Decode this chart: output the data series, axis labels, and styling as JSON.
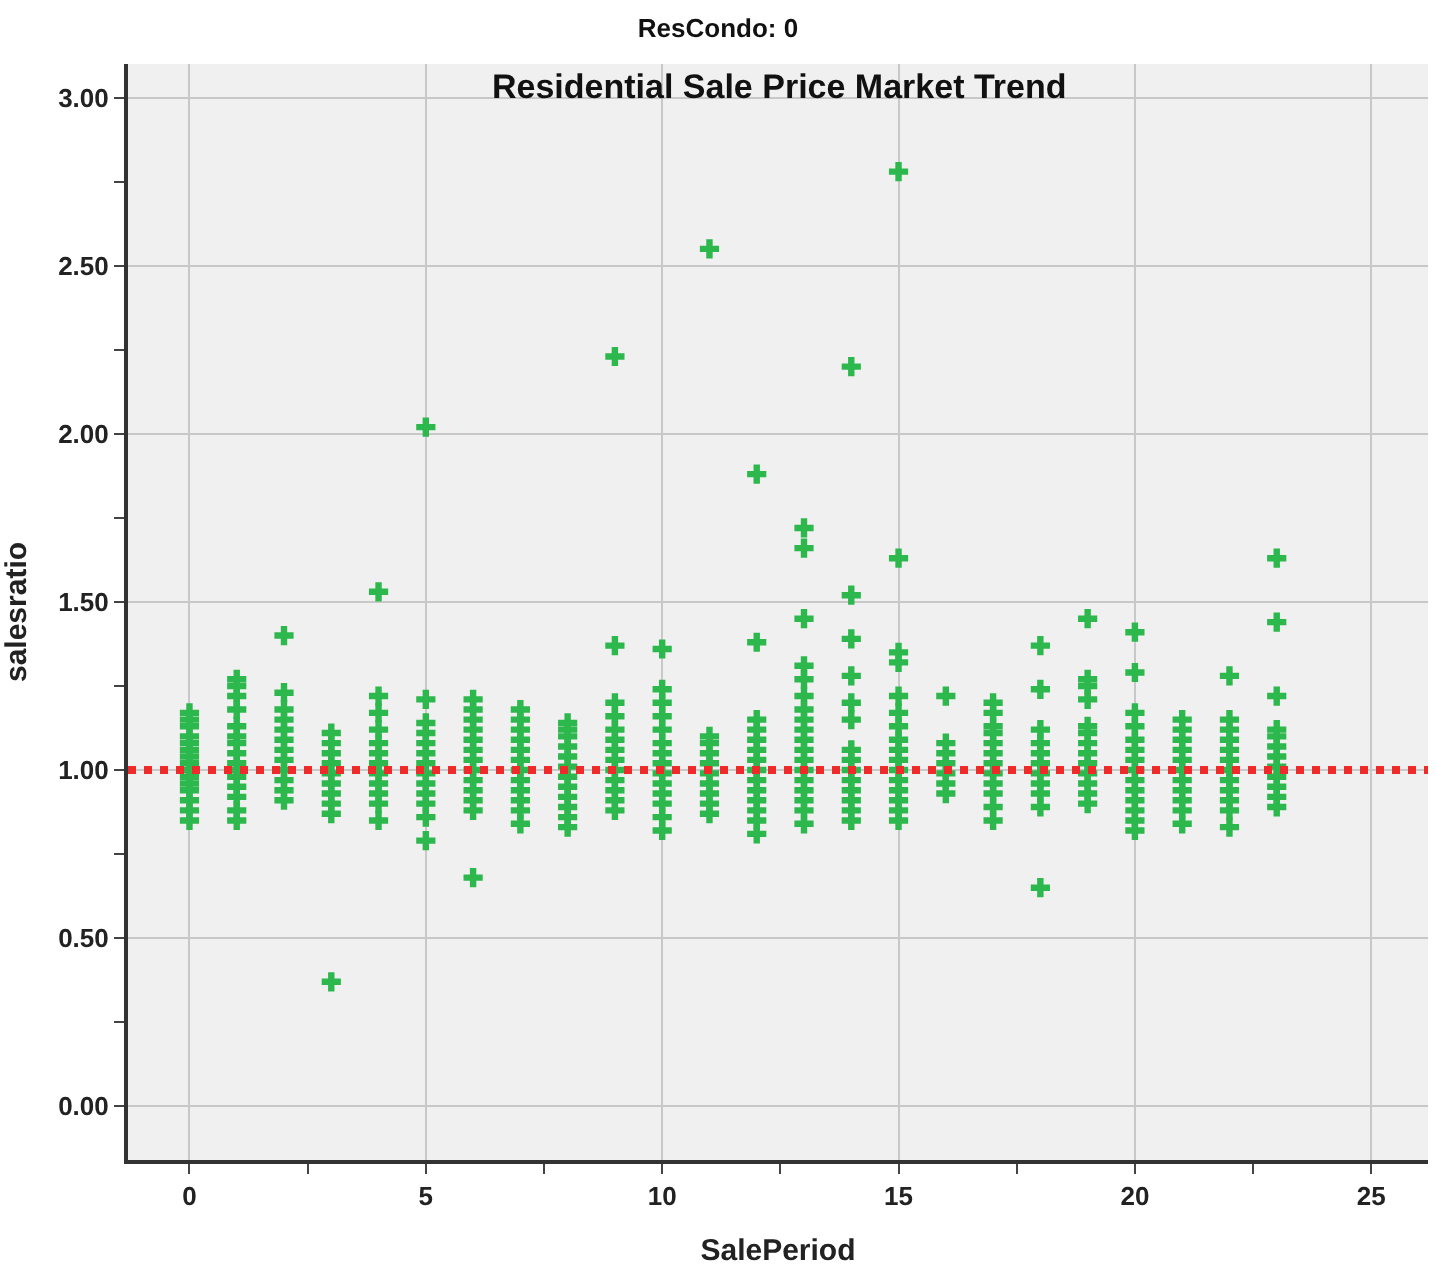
{
  "chart_data": {
    "type": "scatter",
    "title": "ResCondo: 0",
    "subtitle": "Residential Sale Price Market Trend",
    "xlabel": "SalePeriod",
    "ylabel": "salesratio",
    "series": [
      {
        "color": "#2db84d",
        "x": [
          0,
          0,
          0,
          0,
          0,
          0,
          0,
          0,
          0,
          0,
          0,
          0,
          0,
          0,
          0,
          1,
          1,
          1,
          1,
          1,
          1,
          1,
          1,
          1,
          1,
          1,
          1,
          1,
          1,
          1,
          2,
          2,
          2,
          2,
          2,
          2,
          2,
          2,
          2,
          2,
          2,
          2,
          3,
          3,
          3,
          3,
          3,
          3,
          3,
          3,
          3,
          3,
          4,
          4,
          4,
          4,
          4,
          4,
          4,
          4,
          4,
          4,
          4,
          4,
          5,
          5,
          5,
          5,
          5,
          5,
          5,
          5,
          5,
          5,
          5,
          5,
          5,
          6,
          6,
          6,
          6,
          6,
          6,
          6,
          6,
          6,
          6,
          6,
          6,
          6,
          7,
          7,
          7,
          7,
          7,
          7,
          7,
          7,
          7,
          7,
          7,
          7,
          8,
          8,
          8,
          8,
          8,
          8,
          8,
          8,
          8,
          8,
          8,
          8,
          9,
          9,
          9,
          9,
          9,
          9,
          9,
          9,
          9,
          9,
          9,
          9,
          9,
          10,
          10,
          10,
          10,
          10,
          10,
          10,
          10,
          10,
          10,
          10,
          10,
          10,
          10,
          11,
          11,
          11,
          11,
          11,
          11,
          11,
          11,
          11,
          11,
          12,
          12,
          12,
          12,
          12,
          12,
          12,
          12,
          12,
          12,
          12,
          12,
          12,
          12,
          13,
          13,
          13,
          13,
          13,
          13,
          13,
          13,
          13,
          13,
          13,
          13,
          13,
          13,
          13,
          13,
          13,
          13,
          14,
          14,
          14,
          14,
          14,
          14,
          14,
          14,
          14,
          14,
          14,
          14,
          14,
          14,
          15,
          15,
          15,
          15,
          15,
          15,
          15,
          15,
          15,
          15,
          15,
          15,
          15,
          15,
          15,
          15,
          16,
          16,
          16,
          16,
          16,
          16,
          16,
          17,
          17,
          17,
          17,
          17,
          17,
          17,
          17,
          17,
          17,
          17,
          17,
          18,
          18,
          18,
          18,
          18,
          18,
          18,
          18,
          18,
          18,
          18,
          19,
          19,
          19,
          19,
          19,
          19,
          19,
          19,
          19,
          19,
          19,
          19,
          19,
          20,
          20,
          20,
          20,
          20,
          20,
          20,
          20,
          20,
          20,
          20,
          20,
          20,
          20,
          21,
          21,
          21,
          21,
          21,
          21,
          21,
          21,
          21,
          21,
          21,
          22,
          22,
          22,
          22,
          22,
          22,
          22,
          22,
          22,
          22,
          22,
          22,
          23,
          23,
          23,
          23,
          23,
          23,
          23,
          23,
          23,
          23,
          23,
          23
        ],
        "values": [
          0.85,
          0.88,
          0.91,
          0.94,
          0.96,
          0.98,
          1.0,
          1.02,
          1.04,
          1.06,
          1.08,
          1.1,
          1.13,
          1.15,
          1.17,
          0.85,
          0.88,
          0.92,
          0.95,
          0.98,
          1.0,
          1.02,
          1.05,
          1.08,
          1.1,
          1.13,
          1.18,
          1.22,
          1.25,
          1.27,
          0.91,
          0.94,
          0.97,
          1.0,
          1.03,
          1.06,
          1.09,
          1.12,
          1.15,
          1.18,
          1.23,
          1.4,
          0.37,
          0.87,
          0.9,
          0.93,
          0.96,
          0.99,
          1.02,
          1.05,
          1.08,
          1.11,
          0.85,
          0.9,
          0.93,
          0.96,
          0.99,
          1.02,
          1.05,
          1.08,
          1.12,
          1.17,
          1.22,
          1.53,
          0.79,
          0.86,
          0.9,
          0.93,
          0.96,
          0.99,
          1.02,
          1.05,
          1.08,
          1.11,
          1.14,
          1.21,
          2.02,
          0.68,
          0.88,
          0.91,
          0.94,
          0.97,
          1.0,
          1.03,
          1.06,
          1.09,
          1.12,
          1.15,
          1.18,
          1.21,
          0.84,
          0.88,
          0.91,
          0.94,
          0.97,
          1.0,
          1.03,
          1.06,
          1.09,
          1.12,
          1.15,
          1.18,
          0.83,
          0.86,
          0.89,
          0.92,
          0.95,
          0.98,
          1.01,
          1.04,
          1.07,
          1.1,
          1.12,
          1.14,
          0.88,
          0.91,
          0.94,
          0.97,
          1.0,
          1.03,
          1.06,
          1.09,
          1.12,
          1.16,
          1.2,
          1.37,
          2.23,
          0.82,
          0.86,
          0.9,
          0.93,
          0.96,
          0.99,
          1.02,
          1.05,
          1.08,
          1.12,
          1.16,
          1.2,
          1.24,
          1.36,
          0.87,
          0.9,
          0.93,
          0.96,
          0.99,
          1.02,
          1.05,
          1.08,
          1.1,
          2.55,
          0.81,
          0.85,
          0.88,
          0.91,
          0.94,
          0.97,
          1.0,
          1.03,
          1.06,
          1.09,
          1.12,
          1.15,
          1.38,
          1.88,
          0.84,
          0.88,
          0.91,
          0.94,
          0.97,
          1.0,
          1.03,
          1.06,
          1.09,
          1.12,
          1.15,
          1.18,
          1.22,
          1.27,
          1.31,
          1.45,
          1.66,
          1.72,
          0.85,
          0.88,
          0.91,
          0.94,
          0.97,
          1.0,
          1.03,
          1.06,
          1.15,
          1.2,
          1.28,
          1.39,
          1.52,
          2.2,
          0.85,
          0.88,
          0.91,
          0.94,
          0.97,
          1.0,
          1.03,
          1.06,
          1.09,
          1.13,
          1.17,
          1.22,
          1.32,
          1.35,
          1.63,
          2.78,
          0.93,
          0.96,
          0.99,
          1.02,
          1.05,
          1.08,
          1.22,
          0.85,
          0.89,
          0.93,
          0.96,
          0.99,
          1.02,
          1.05,
          1.08,
          1.11,
          1.13,
          1.17,
          1.2,
          0.65,
          0.89,
          0.93,
          0.96,
          0.99,
          1.02,
          1.05,
          1.08,
          1.12,
          1.24,
          1.37,
          0.9,
          0.93,
          0.96,
          0.99,
          1.02,
          1.05,
          1.08,
          1.11,
          1.13,
          1.21,
          1.25,
          1.27,
          1.45,
          0.82,
          0.85,
          0.88,
          0.91,
          0.94,
          0.97,
          1.0,
          1.03,
          1.06,
          1.09,
          1.13,
          1.17,
          1.29,
          1.41,
          0.84,
          0.88,
          0.91,
          0.94,
          0.97,
          1.0,
          1.03,
          1.06,
          1.09,
          1.12,
          1.15,
          0.83,
          0.88,
          0.91,
          0.94,
          0.97,
          1.0,
          1.03,
          1.06,
          1.09,
          1.12,
          1.15,
          1.28,
          0.89,
          0.92,
          0.95,
          0.98,
          1.01,
          1.04,
          1.07,
          1.1,
          1.12,
          1.22,
          1.44,
          1.63
        ]
      }
    ],
    "marker": "cross",
    "xlim": [
      -1.3,
      26.2
    ],
    "xticks": [
      0,
      {
        "value": 2.5,
        "label": null
      },
      5,
      {
        "value": 7.5,
        "label": null
      },
      10,
      {
        "value": 12.5,
        "label": null
      },
      15,
      {
        "value": 17.5,
        "label": null
      },
      20,
      {
        "value": 22.5,
        "label": null
      },
      25
    ],
    "ylim": [
      -0.16,
      3.1
    ],
    "yticks": [
      "0.00",
      {
        "value": 0.25,
        "label": null
      },
      {
        "value": 0.5,
        "label": "0.50"
      },
      {
        "value": 0.75,
        "label": null
      },
      {
        "value": 1.0,
        "label": "1.00"
      },
      {
        "value": 1.25,
        "label": null
      },
      {
        "value": 1.5,
        "label": "1.50"
      },
      {
        "value": 1.75,
        "label": null
      },
      {
        "value": 2.0,
        "label": "2.00"
      },
      {
        "value": 2.25,
        "label": null
      },
      {
        "value": 2.5,
        "label": "2.50"
      },
      {
        "value": 2.75,
        "label": null
      },
      {
        "value": 3.0,
        "label": "3.00"
      }
    ],
    "ref_lines": [
      {
        "axis": "y",
        "value": 1.0,
        "color": "#ee2a2a",
        "line_style": "dotted"
      }
    ],
    "grid": true
  }
}
